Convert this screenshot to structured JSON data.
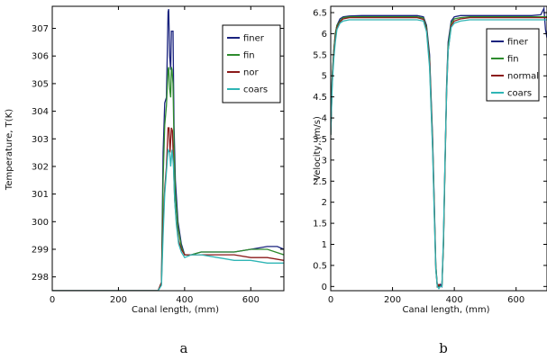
{
  "chart_data": [
    {
      "type": "line",
      "panel_label": "a",
      "xlabel": "Canal length, (mm)",
      "ylabel": "Temperature, T(K)",
      "xlim": [
        0,
        700
      ],
      "ylim": [
        297.5,
        307.8
      ],
      "xticks": [
        0,
        200,
        400,
        600
      ],
      "yticks": [
        298,
        299,
        300,
        301,
        302,
        303,
        304,
        305,
        306,
        307
      ],
      "legend_position": "top-right",
      "series": [
        {
          "name": "finer",
          "color": "#1a237e",
          "x": [
            0,
            320,
            330,
            335,
            340,
            345,
            350,
            352,
            355,
            358,
            360,
            362,
            365,
            368,
            372,
            380,
            390,
            400,
            420,
            450,
            500,
            550,
            600,
            650,
            680,
            700
          ],
          "y": [
            297.5,
            297.5,
            297.8,
            302.5,
            304.3,
            304.5,
            307.6,
            307.7,
            306.0,
            305.5,
            306.9,
            306.9,
            306.9,
            303.5,
            301.5,
            300.0,
            299.2,
            298.8,
            298.8,
            298.9,
            298.9,
            298.9,
            299.0,
            299.1,
            299.1,
            299.0
          ]
        },
        {
          "name": "fin",
          "color": "#2e8b2e",
          "x": [
            0,
            320,
            330,
            335,
            340,
            345,
            350,
            352,
            355,
            358,
            360,
            362,
            365,
            368,
            372,
            380,
            390,
            400,
            420,
            450,
            500,
            550,
            600,
            650,
            700
          ],
          "y": [
            297.5,
            297.5,
            297.8,
            301.5,
            303.5,
            304.2,
            305.5,
            305.6,
            304.8,
            304.5,
            305.6,
            305.5,
            305.0,
            302.8,
            301.0,
            299.8,
            299.1,
            298.8,
            298.8,
            298.9,
            298.9,
            298.9,
            299.0,
            299.0,
            298.8
          ]
        },
        {
          "name": "nor",
          "color": "#8b1a1a",
          "x": [
            0,
            320,
            330,
            335,
            340,
            345,
            350,
            353,
            356,
            360,
            363,
            366,
            370,
            375,
            382,
            390,
            400,
            420,
            450,
            500,
            550,
            600,
            650,
            700
          ],
          "y": [
            297.5,
            297.5,
            297.8,
            300.0,
            301.2,
            302.0,
            303.4,
            303.4,
            302.5,
            303.4,
            303.3,
            302.2,
            300.8,
            300.0,
            299.3,
            299.0,
            298.8,
            298.8,
            298.8,
            298.8,
            298.8,
            298.7,
            298.7,
            298.6
          ]
        },
        {
          "name": "coars",
          "color": "#2fb5b5",
          "x": [
            0,
            320,
            330,
            335,
            340,
            345,
            350,
            355,
            358,
            362,
            366,
            370,
            375,
            382,
            390,
            400,
            420,
            450,
            500,
            550,
            600,
            650,
            700
          ],
          "y": [
            297.5,
            297.5,
            297.7,
            299.5,
            301.0,
            301.8,
            302.6,
            302.5,
            302.0,
            302.6,
            302.1,
            300.8,
            299.9,
            299.2,
            298.9,
            298.7,
            298.8,
            298.8,
            298.7,
            298.6,
            298.6,
            298.5,
            298.5
          ]
        }
      ]
    },
    {
      "type": "line",
      "panel_label": "b",
      "xlabel": "Canal length, (mm)",
      "ylabel": "Velocity, (m/s)",
      "xlim": [
        0,
        700
      ],
      "ylim": [
        -0.1,
        6.65
      ],
      "xticks": [
        0,
        200,
        400,
        600
      ],
      "yticks": [
        0,
        0.5,
        1,
        1.5,
        2,
        2.5,
        3,
        3.5,
        4,
        4.5,
        5,
        5.5,
        6,
        6.5
      ],
      "legend_position": "top-right",
      "series": [
        {
          "name": "finer",
          "color": "#1a237e",
          "x": [
            0,
            5,
            10,
            15,
            20,
            30,
            40,
            60,
            100,
            200,
            280,
            300,
            310,
            320,
            330,
            335,
            340,
            345,
            350,
            355,
            360,
            365,
            370,
            375,
            380,
            390,
            400,
            420,
            450,
            500,
            600,
            650,
            680,
            690,
            695,
            700
          ],
          "y": [
            3.6,
            5.0,
            5.6,
            6.0,
            6.2,
            6.35,
            6.4,
            6.42,
            6.43,
            6.43,
            6.43,
            6.4,
            6.2,
            5.5,
            3.5,
            2.0,
            0.5,
            0.0,
            0.0,
            0.05,
            0.0,
            1.0,
            3.0,
            4.8,
            5.8,
            6.3,
            6.4,
            6.43,
            6.43,
            6.43,
            6.43,
            6.43,
            6.45,
            6.6,
            6.1,
            5.9
          ]
        },
        {
          "name": "fin",
          "color": "#2e8b2e",
          "x": [
            0,
            5,
            10,
            15,
            20,
            30,
            40,
            60,
            100,
            200,
            280,
            300,
            310,
            320,
            330,
            335,
            340,
            345,
            350,
            355,
            360,
            365,
            370,
            375,
            380,
            390,
            400,
            420,
            450,
            500,
            600,
            650,
            700
          ],
          "y": [
            3.6,
            5.0,
            5.6,
            6.0,
            6.2,
            6.3,
            6.38,
            6.4,
            6.4,
            6.4,
            6.4,
            6.37,
            6.15,
            5.4,
            3.4,
            1.9,
            0.5,
            0.0,
            0.02,
            0.0,
            0.0,
            1.0,
            2.9,
            4.7,
            5.7,
            6.25,
            6.35,
            6.38,
            6.4,
            6.4,
            6.4,
            6.4,
            6.4
          ]
        },
        {
          "name": "normal",
          "color": "#8b1a1a",
          "x": [
            0,
            5,
            10,
            15,
            20,
            30,
            40,
            60,
            100,
            200,
            280,
            300,
            310,
            320,
            330,
            335,
            340,
            345,
            350,
            355,
            360,
            365,
            370,
            375,
            380,
            390,
            400,
            420,
            450,
            500,
            600,
            650,
            700
          ],
          "y": [
            3.6,
            4.9,
            5.5,
            5.9,
            6.15,
            6.28,
            6.35,
            6.38,
            6.38,
            6.38,
            6.38,
            6.34,
            6.1,
            5.3,
            3.3,
            1.8,
            0.4,
            0.0,
            0.05,
            0.0,
            0.02,
            1.1,
            3.0,
            4.6,
            5.6,
            6.2,
            6.3,
            6.35,
            6.38,
            6.38,
            6.38,
            6.38,
            6.38
          ]
        },
        {
          "name": "coars",
          "color": "#2fb5b5",
          "x": [
            0,
            5,
            10,
            15,
            20,
            30,
            40,
            60,
            100,
            200,
            280,
            300,
            310,
            320,
            330,
            335,
            340,
            345,
            350,
            355,
            360,
            365,
            370,
            375,
            380,
            390,
            400,
            420,
            450,
            500,
            600,
            650,
            700
          ],
          "y": [
            3.6,
            4.8,
            5.4,
            5.8,
            6.1,
            6.25,
            6.3,
            6.33,
            6.33,
            6.33,
            6.33,
            6.3,
            6.05,
            5.2,
            3.2,
            1.7,
            0.4,
            0.0,
            -0.05,
            0.0,
            0.0,
            1.2,
            3.1,
            4.6,
            5.6,
            6.15,
            6.25,
            6.3,
            6.33,
            6.33,
            6.33,
            6.33,
            6.33
          ]
        }
      ]
    }
  ]
}
